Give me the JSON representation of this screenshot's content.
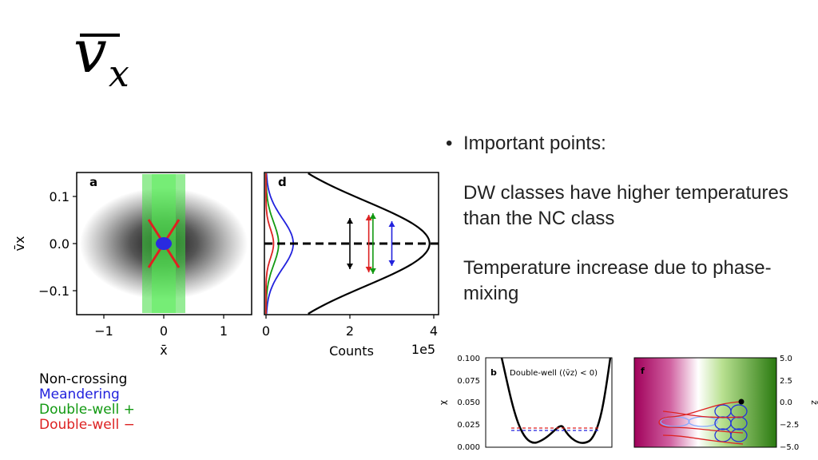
{
  "slide": {
    "title_symbol": "v",
    "title_subscript": "x"
  },
  "bullets": {
    "heading": "Important points:",
    "paragraph_1": "DW classes have higher temperatures than the NC class",
    "paragraph_2": "Temperature increase due to phase-mixing"
  },
  "legend": {
    "items": [
      {
        "label": "Non-crossing",
        "color": "#000000"
      },
      {
        "label": "Meandering",
        "color": "#2222dd"
      },
      {
        "label": "Double-well +",
        "color": "#119911"
      },
      {
        "label": "Double-well −",
        "color": "#dd2222"
      }
    ]
  },
  "chart_data": [
    {
      "type": "heatmap",
      "panel_label": "a",
      "xlabel": "x̄",
      "ylabel": "v̄x",
      "xlim": [
        -1.5,
        1.5
      ],
      "ylim": [
        -0.15,
        0.15
      ],
      "x_ticks": [
        "−1",
        "0",
        "1"
      ],
      "y_ticks": [
        "0.1",
        "0.0",
        "−0.1"
      ]
    },
    {
      "type": "line",
      "panel_label": "d",
      "xlabel": "Counts",
      "x_multiplier": "1e5",
      "x_ticks": [
        "0",
        "2",
        "4"
      ],
      "xlim": [
        0,
        4.1
      ],
      "ylim": [
        -0.15,
        0.15
      ],
      "series": [
        {
          "color": "#000000",
          "peak": 3.9,
          "width": 0.06
        },
        {
          "color": "#2222dd",
          "peak": 0.65,
          "width": 0.035
        },
        {
          "color": "#119911",
          "peak": 0.3,
          "width": 0.03
        },
        {
          "color": "#dd2222",
          "peak": 0.18,
          "width": 0.02
        }
      ],
      "arrows": [
        {
          "x": 2.0,
          "color": "#000000"
        },
        {
          "x": 2.45,
          "color": "#dd2222"
        },
        {
          "x": 2.55,
          "color": "#119911"
        },
        {
          "x": 3.0,
          "color": "#2222dd"
        }
      ]
    },
    {
      "type": "line",
      "panel_label": "b",
      "annotation": "Double-well (⟨v̄z⟩ < 0)",
      "ylabel": "χ",
      "ylim": [
        0,
        0.1
      ],
      "y_ticks": [
        "0.100",
        "0.075",
        "0.050",
        "0.025",
        "0.000"
      ]
    },
    {
      "type": "heatmap",
      "panel_label": "f",
      "ylabel": "z̄",
      "ylim": [
        -5,
        5
      ],
      "y_ticks": [
        "5.0",
        "2.5",
        "0.0",
        "−2.5",
        "−5.0"
      ]
    }
  ]
}
